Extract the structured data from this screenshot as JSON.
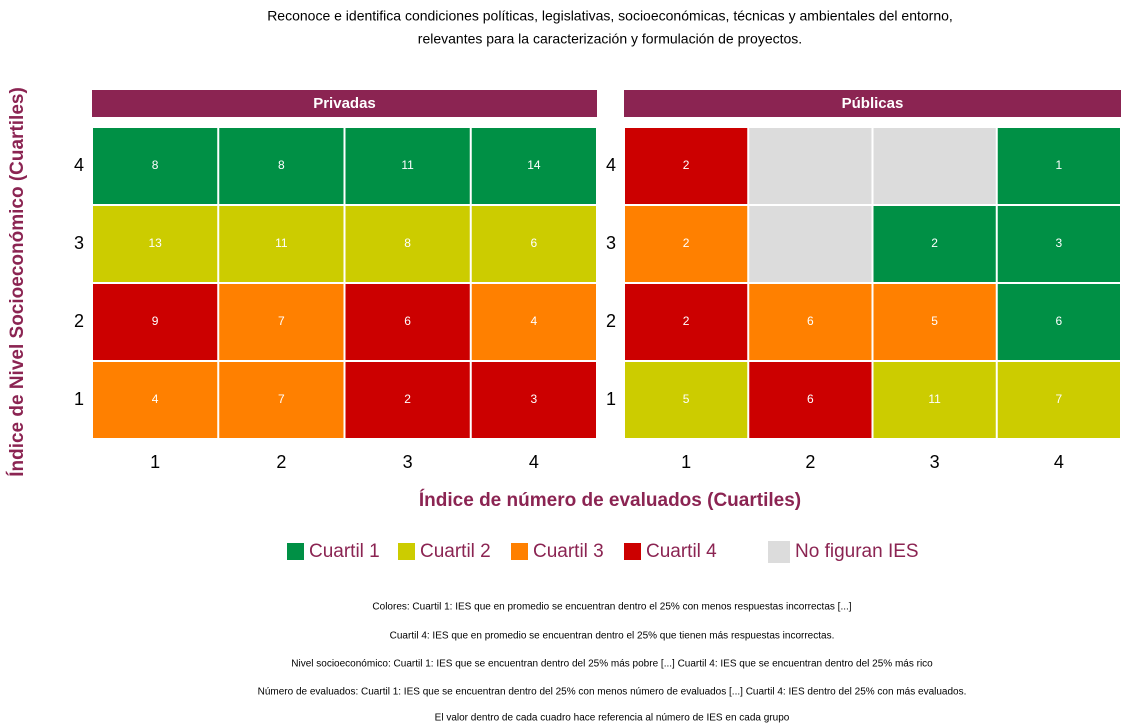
{
  "chart_data": {
    "type": "heatmap",
    "title": [
      "Reconoce e identifica condiciones políticas, legislativas, socioeconómicas, técnicas y ambientales del entorno,",
      "relevantes para la caracterización y formulación de proyectos."
    ],
    "xlabel": "Índice de número de evaluados (Cuartiles)",
    "ylabel": "Índice de Nivel Socioeconómico (Cuartiles)",
    "x": [
      1,
      2,
      3,
      4
    ],
    "y": [
      1,
      2,
      3,
      4
    ],
    "legend": [
      {
        "name": "Cuartil 1",
        "color": "#009045"
      },
      {
        "name": "Cuartil 2",
        "color": "#cccc00"
      },
      {
        "name": "Cuartil 3",
        "color": "#ff8000"
      },
      {
        "name": "Cuartil 4",
        "color": "#cc0000"
      }
    ],
    "missing": {
      "name": "No figuran IES",
      "color": "#dcdcdc"
    },
    "strip_color": "#8b2452",
    "panels": [
      {
        "name": "Privadas",
        "values": [
          [
            4,
            7,
            2,
            3
          ],
          [
            9,
            7,
            6,
            4
          ],
          [
            13,
            11,
            8,
            6
          ],
          [
            8,
            8,
            11,
            14
          ]
        ],
        "quartiles": [
          [
            3,
            3,
            4,
            4
          ],
          [
            4,
            3,
            4,
            3
          ],
          [
            2,
            2,
            2,
            2
          ],
          [
            1,
            1,
            1,
            1
          ]
        ]
      },
      {
        "name": "Públicas",
        "values": [
          [
            5,
            6,
            11,
            7
          ],
          [
            2,
            6,
            5,
            6
          ],
          [
            2,
            null,
            2,
            3
          ],
          [
            2,
            null,
            null,
            1
          ]
        ],
        "quartiles": [
          [
            2,
            4,
            2,
            2
          ],
          [
            4,
            3,
            3,
            1
          ],
          [
            3,
            null,
            1,
            1
          ],
          [
            4,
            null,
            null,
            1
          ]
        ]
      }
    ],
    "notes": [
      "Colores: Cuartil 1:  IES que en promedio se encuentran dentro el 25% con menos respuestas incorrectas [...]",
      "Cuartil 4: IES que en promedio se encuentran dentro el 25% que tienen más respuestas incorrectas.",
      "Nivel socioeconómico: Cuartil 1: IES que se encuentran dentro del 25% más pobre [...] Cuartil 4: IES que se encuentran dentro del 25% más rico",
      "Número de evaluados: Cuartil 1: IES que se encuentran dentro del 25% con menos número de evaluados [...] Cuartil 4: IES dentro del 25% con más evaluados.",
      "El valor dentro de cada cuadro hace referencia al número de IES en cada grupo"
    ]
  }
}
